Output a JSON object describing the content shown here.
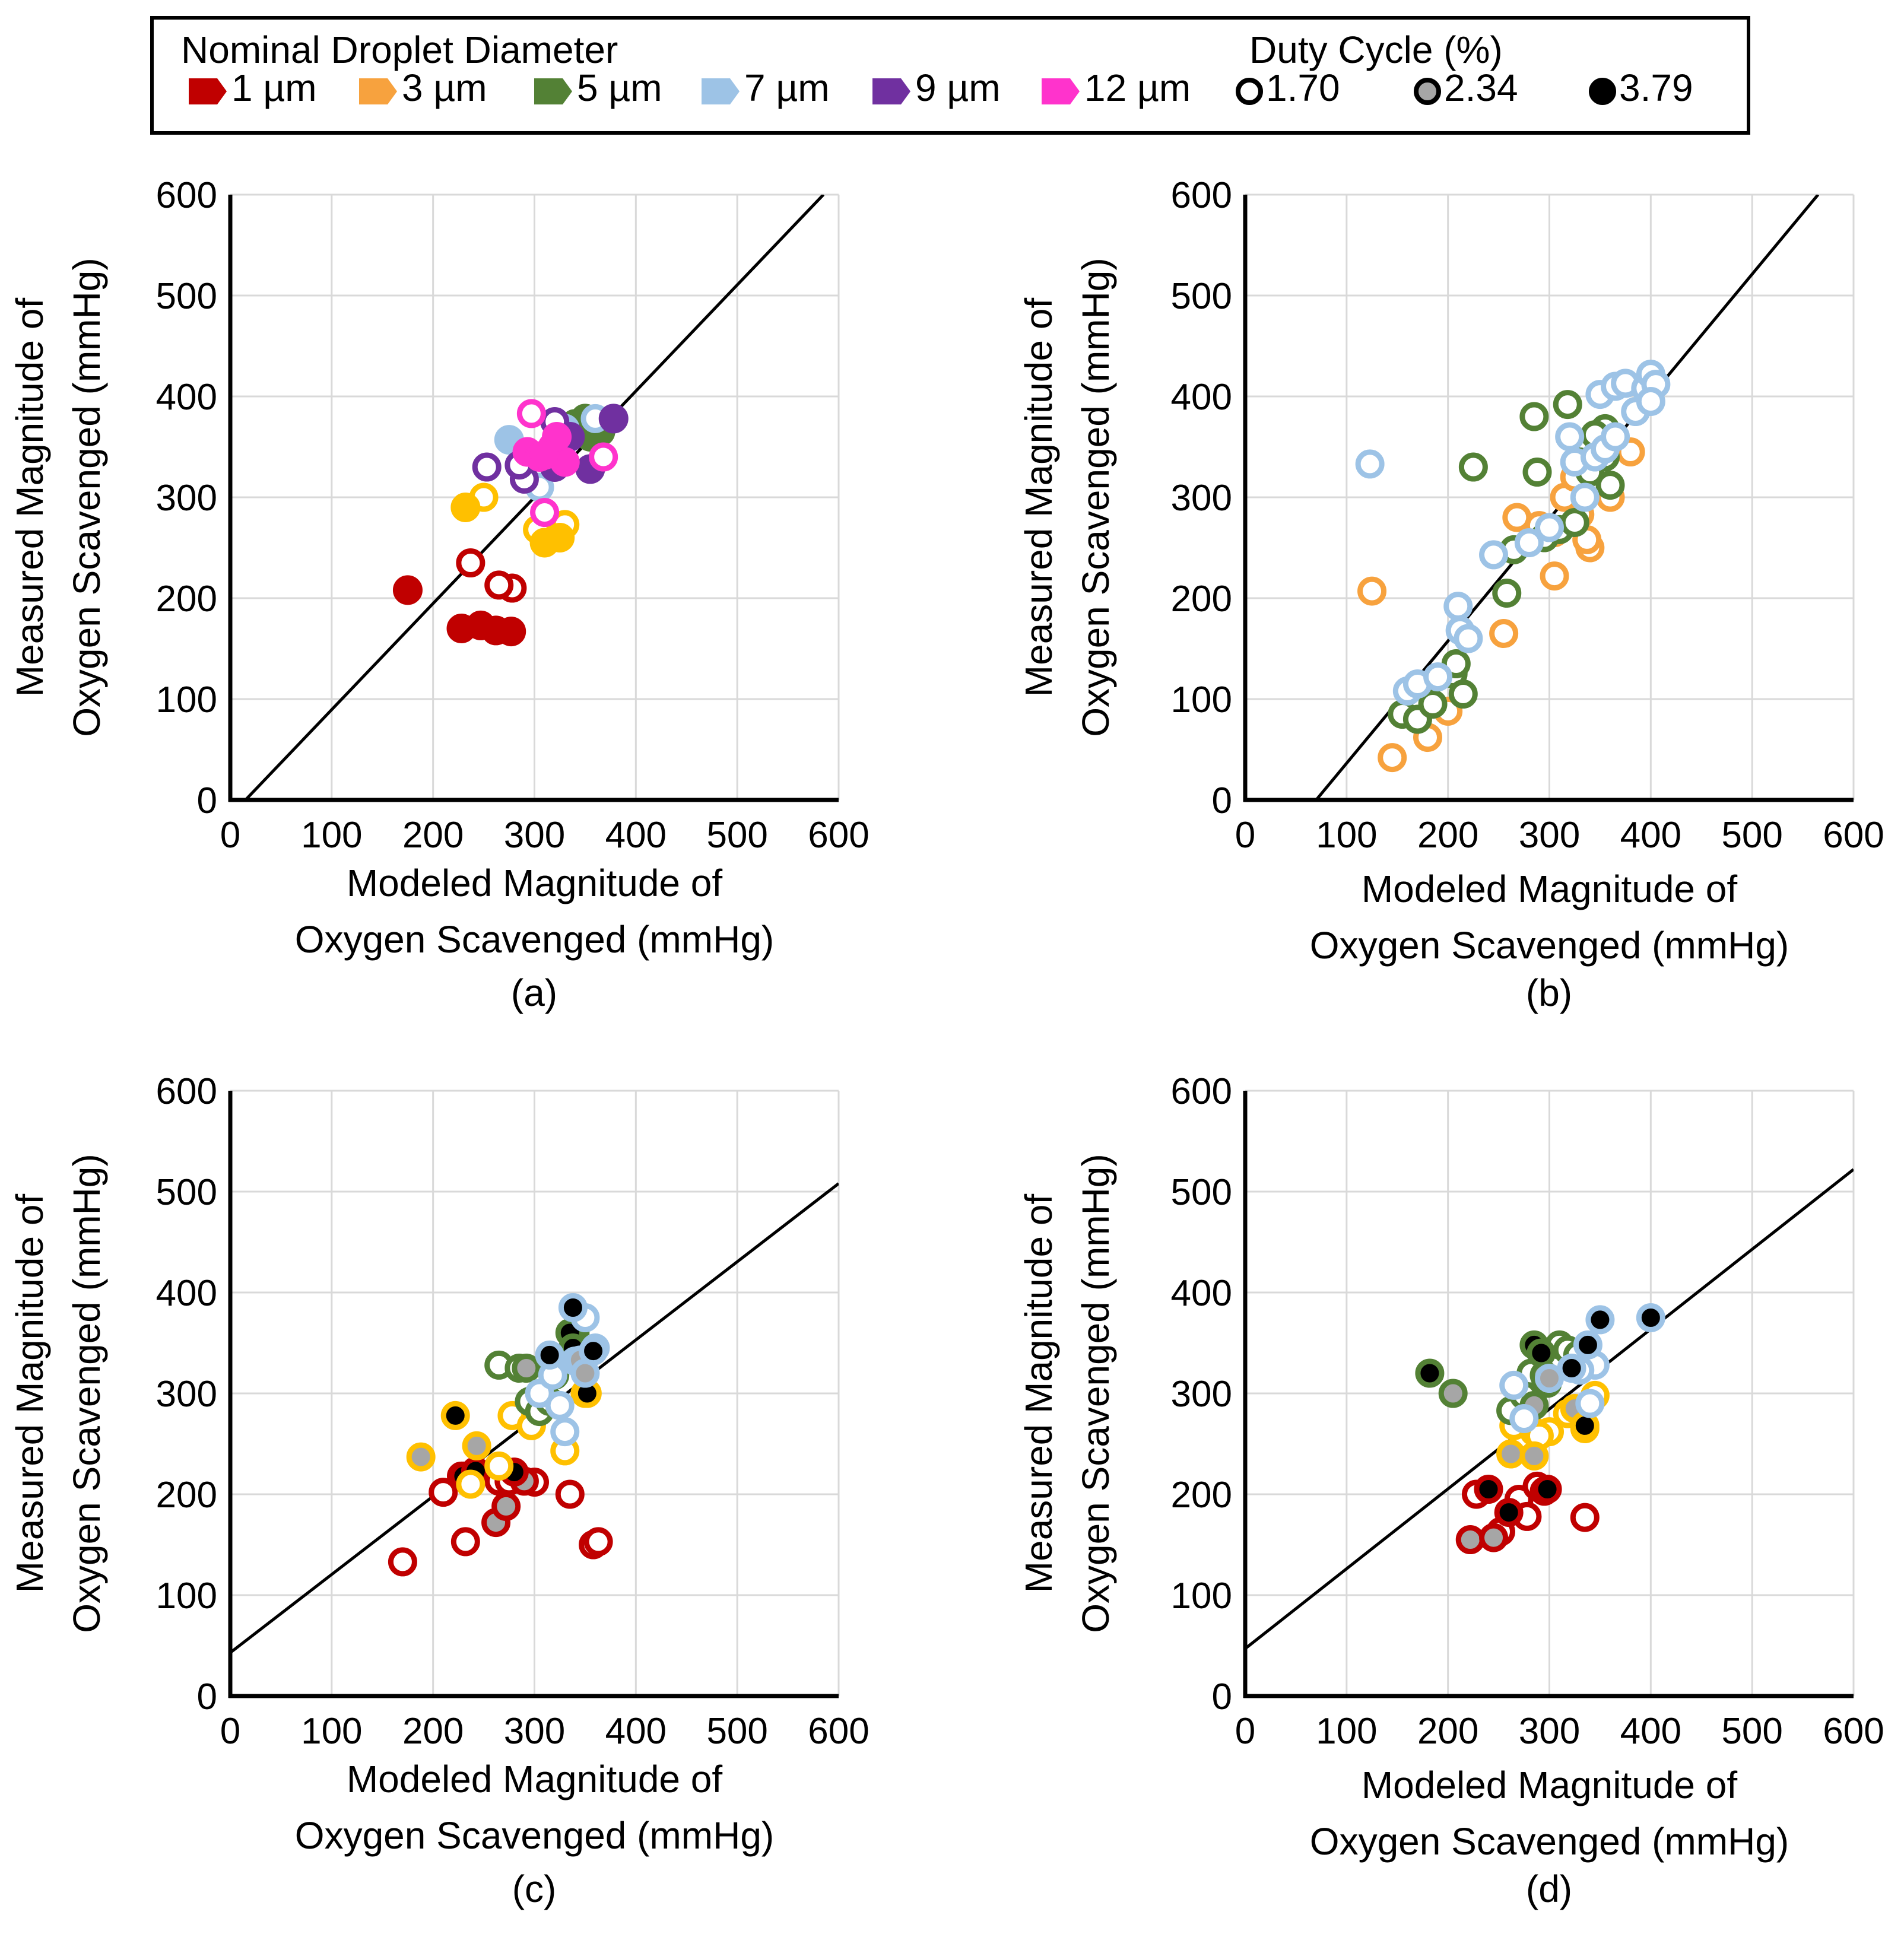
{
  "legend": {
    "diameter_title": "Nominal Droplet Diameter",
    "duty_title": "Duty Cycle (%)",
    "diameters": [
      {
        "label": "1 µm",
        "color": "#c00000"
      },
      {
        "label": "3 µm",
        "color": "#f7a23e"
      },
      {
        "label": "5 µm",
        "color": "#538135"
      },
      {
        "label": "7 µm",
        "color": "#9dc3e6"
      },
      {
        "label": "9 µm",
        "color": "#7030a0"
      },
      {
        "label": "12 µm",
        "color": "#ff33cc"
      }
    ],
    "duty_cycles": [
      {
        "label": "1.70",
        "fill": "#ffffff"
      },
      {
        "label": "2.34",
        "fill": "#a6a6a6"
      },
      {
        "label": "3.79",
        "fill": "#000000"
      }
    ]
  },
  "colors": {
    "d1": "#c00000",
    "d3": "#f7a23e",
    "d3b": "#ffc000",
    "d5": "#538135",
    "d7": "#9dc3e6",
    "d9": "#7030a0",
    "d12": "#ff33cc",
    "grid": "#d9d9d9",
    "axis": "#000000"
  },
  "chart_data": [
    {
      "panel": "(a)",
      "type": "scatter",
      "xlabel": [
        "Modeled Magnitude of",
        "Oxygen Scavenged (mmHg)"
      ],
      "ylabel": [
        "Measured Magnitude of",
        "Oxygen Scavenged (mmHg)"
      ],
      "xlim": [
        0,
        600
      ],
      "ylim": [
        0,
        600
      ],
      "xticks": [
        "0",
        "100",
        "200",
        "300",
        "400",
        "500",
        "600"
      ],
      "yticks": [
        "0",
        "100",
        "200",
        "300",
        "400",
        "500",
        "600"
      ],
      "fit_line": [
        [
          15,
          0
        ],
        [
          585,
          600
        ]
      ],
      "series": [
        {
          "name": "1 µm",
          "color": "d1",
          "open": [
            [
              237,
              235
            ],
            [
              278,
              210
            ],
            [
              265,
              213
            ]
          ],
          "filled": [
            [
              175,
              208
            ],
            [
              228,
              170
            ],
            [
              247,
              173
            ],
            [
              262,
              168
            ],
            [
              277,
              167
            ]
          ]
        },
        {
          "name": "3 µm",
          "color": "d3b",
          "open": [
            [
              250,
              300
            ],
            [
              303,
              268
            ],
            [
              330,
              273
            ]
          ],
          "filled": [
            [
              232,
              290
            ],
            [
              310,
              255
            ],
            [
              325,
              260
            ]
          ]
        },
        {
          "name": "5 µm",
          "color": "d5",
          "open": [
            [
              340,
              373
            ]
          ],
          "filled": [
            [
              350,
              378
            ],
            [
              365,
              365
            ],
            [
              355,
              360
            ]
          ]
        },
        {
          "name": "7 µm",
          "color": "d7",
          "open": [
            [
              305,
              310
            ],
            [
              360,
              378
            ]
          ],
          "filled": [
            [
              275,
              357
            ],
            [
              330,
              368
            ]
          ]
        },
        {
          "name": "9 µm",
          "color": "d9",
          "open": [
            [
              253,
              330
            ],
            [
              290,
              318
            ],
            [
              320,
              375
            ],
            [
              285,
              332
            ]
          ],
          "filled": [
            [
              378,
              378
            ],
            [
              355,
              328
            ],
            [
              320,
              330
            ],
            [
              335,
              360
            ]
          ]
        },
        {
          "name": "12 µm",
          "color": "d12",
          "open": [
            [
              297,
              383
            ],
            [
              310,
              285
            ],
            [
              368,
              340
            ]
          ],
          "filled": [
            [
              293,
              345
            ],
            [
              305,
              340
            ],
            [
              318,
              350
            ],
            [
              330,
              335
            ],
            [
              322,
              360
            ],
            [
              310,
              342
            ]
          ]
        }
      ]
    },
    {
      "panel": "(b)",
      "type": "scatter",
      "xlabel": [
        "Modeled Magnitude of",
        "Oxygen Scavenged (mmHg)"
      ],
      "ylabel": [
        "Measured Magnitude of",
        "Oxygen Scavenged (mmHg)"
      ],
      "xlim": [
        0,
        600
      ],
      "ylim": [
        0,
        600
      ],
      "xticks": [
        "0",
        "100",
        "200",
        "300",
        "400",
        "500",
        "600"
      ],
      "yticks": [
        "0",
        "100",
        "200",
        "300",
        "400",
        "500",
        "600"
      ],
      "fit_line": [
        [
          70,
          0
        ],
        [
          565,
          600
        ]
      ],
      "series": [
        {
          "name": "3 µm",
          "color": "d3",
          "open": [
            [
              125,
              207
            ],
            [
              145,
              42
            ],
            [
              180,
              62
            ],
            [
              200,
              88
            ],
            [
              255,
              165
            ],
            [
              268,
              280
            ],
            [
              290,
              272
            ],
            [
              305,
              222
            ],
            [
              305,
              265
            ],
            [
              330,
              283
            ],
            [
              340,
              250
            ],
            [
              350,
              308
            ],
            [
              360,
              300
            ],
            [
              380,
              345
            ],
            [
              315,
              300
            ],
            [
              325,
              320
            ],
            [
              337,
              258
            ]
          ],
          "filled": []
        },
        {
          "name": "5 µm",
          "color": "d5",
          "open": [
            [
              155,
              85
            ],
            [
              170,
              80
            ],
            [
              185,
              95
            ],
            [
              205,
              125
            ],
            [
              208,
              135
            ],
            [
              215,
              105
            ],
            [
              225,
              330
            ],
            [
              258,
              205
            ],
            [
              265,
              248
            ],
            [
              285,
              380
            ],
            [
              288,
              325
            ],
            [
              295,
              260
            ],
            [
              310,
              268
            ],
            [
              318,
              392
            ],
            [
              330,
              335
            ],
            [
              340,
              325
            ],
            [
              355,
              340
            ],
            [
              360,
              312
            ],
            [
              355,
              368
            ],
            [
              345,
              362
            ],
            [
              325,
              275
            ]
          ],
          "filled": []
        },
        {
          "name": "7 µm",
          "color": "d7",
          "open": [
            [
              123,
              333
            ],
            [
              160,
              108
            ],
            [
              170,
              115
            ],
            [
              190,
              122
            ],
            [
              210,
              192
            ],
            [
              212,
              168
            ],
            [
              220,
              160
            ],
            [
              245,
              243
            ],
            [
              280,
              255
            ],
            [
              300,
              270
            ],
            [
              320,
              360
            ],
            [
              325,
              335
            ],
            [
              335,
              300
            ],
            [
              345,
              340
            ],
            [
              355,
              348
            ],
            [
              350,
              402
            ],
            [
              365,
              410
            ],
            [
              375,
              413
            ],
            [
              385,
              385
            ],
            [
              395,
              408
            ],
            [
              400,
              422
            ],
            [
              405,
              412
            ],
            [
              400,
              395
            ],
            [
              365,
              360
            ]
          ],
          "filled": []
        }
      ]
    },
    {
      "panel": "(c)",
      "type": "scatter",
      "xlabel": [
        "Modeled Magnitude of",
        "Oxygen Scavenged (mmHg)"
      ],
      "ylabel": [
        "Measured Magnitude of",
        "Oxygen Scavenged (mmHg)"
      ],
      "xlim": [
        0,
        600
      ],
      "ylim": [
        0,
        600
      ],
      "xticks": [
        "0",
        "100",
        "200",
        "300",
        "400",
        "500",
        "600"
      ],
      "yticks": [
        "0",
        "100",
        "200",
        "300",
        "400",
        "500",
        "600"
      ],
      "fit_line": [
        [
          0,
          43
        ],
        [
          600,
          508
        ]
      ],
      "series": [
        {
          "name": "1 µm",
          "color": "d1",
          "p170": [
            [
              170,
              133
            ],
            [
              210,
              202
            ],
            [
              232,
              153
            ],
            [
              265,
              213
            ],
            [
              275,
              213
            ],
            [
              300,
              212
            ],
            [
              335,
              200
            ],
            [
              358,
              150
            ],
            [
              363,
              153
            ],
            [
              228,
              218
            ]
          ],
          "p234": [
            [
              262,
              172
            ],
            [
              272,
              188
            ],
            [
              290,
              213
            ]
          ],
          "p379": [
            [
              230,
              218
            ],
            [
              242,
              223
            ],
            [
              280,
              222
            ]
          ]
        },
        {
          "name": "3 µm",
          "color": "d3b",
          "p170": [
            [
              237,
              210
            ],
            [
              265,
              228
            ],
            [
              278,
              278
            ],
            [
              297,
              268
            ],
            [
              330,
              243
            ],
            [
              350,
              300
            ]
          ],
          "p234": [
            [
              188,
              237
            ],
            [
              243,
              248
            ]
          ],
          "p379": [
            [
              222,
              278
            ],
            [
              352,
              300
            ]
          ]
        },
        {
          "name": "5 µm",
          "color": "d5",
          "p170": [
            [
              265,
              328
            ],
            [
              285,
              325
            ],
            [
              295,
              292
            ],
            [
              305,
              282
            ],
            [
              315,
              292
            ],
            [
              340,
              355
            ],
            [
              320,
              318
            ],
            [
              348,
              335
            ]
          ],
          "p234": [
            [
              292,
              325
            ],
            [
              340,
              360
            ]
          ],
          "p379": [
            [
              335,
              360
            ],
            [
              338,
              345
            ]
          ]
        },
        {
          "name": "7 µm",
          "color": "d7",
          "p170": [
            [
              305,
              300
            ],
            [
              318,
              318
            ],
            [
              325,
              288
            ],
            [
              330,
              262
            ],
            [
              350,
              375
            ],
            [
              360,
              345
            ],
            [
              340,
              332
            ]
          ],
          "p234": [
            [
              345,
              333
            ],
            [
              350,
              320
            ]
          ],
          "p379": [
            [
              338,
              385
            ],
            [
              315,
              338
            ],
            [
              358,
              342
            ]
          ]
        }
      ]
    },
    {
      "panel": "(d)",
      "type": "scatter",
      "xlabel": [
        "Modeled Magnitude of",
        "Oxygen Scavenged (mmHg)"
      ],
      "ylabel": [
        "Measured Magnitude of",
        "Oxygen Scavenged (mmHg)"
      ],
      "xlim": [
        0,
        600
      ],
      "ylim": [
        0,
        600
      ],
      "xticks": [
        "0",
        "100",
        "200",
        "300",
        "400",
        "500",
        "600"
      ],
      "yticks": [
        "0",
        "100",
        "200",
        "300",
        "400",
        "500",
        "600"
      ],
      "fit_line": [
        [
          0,
          47
        ],
        [
          600,
          522
        ]
      ],
      "series": [
        {
          "name": "1 µm",
          "color": "d1",
          "p170": [
            [
              228,
              200
            ],
            [
              252,
              163
            ],
            [
              270,
              195
            ],
            [
              288,
              208
            ],
            [
              295,
              203
            ],
            [
              335,
              177
            ],
            [
              278,
              178
            ]
          ],
          "p234": [
            [
              222,
              155
            ],
            [
              245,
              157
            ]
          ],
          "p379": [
            [
              240,
              205
            ],
            [
              260,
              182
            ],
            [
              298,
              205
            ]
          ]
        },
        {
          "name": "3 µm",
          "color": "d3b",
          "p170": [
            [
              265,
              268
            ],
            [
              285,
              262
            ],
            [
              300,
              262
            ],
            [
              318,
              280
            ],
            [
              335,
              265
            ],
            [
              345,
              298
            ],
            [
              290,
              258
            ]
          ],
          "p234": [
            [
              262,
              240
            ],
            [
              285,
              238
            ],
            [
              325,
              285
            ]
          ],
          "p379": [
            [
              335,
              268
            ]
          ]
        },
        {
          "name": "5 µm",
          "color": "d5",
          "p170": [
            [
              262,
              283
            ],
            [
              275,
              298
            ],
            [
              298,
              310
            ],
            [
              310,
              348
            ],
            [
              318,
              343
            ],
            [
              328,
              338
            ],
            [
              282,
              320
            ]
          ],
          "p234": [
            [
              205,
              300
            ],
            [
              285,
              288
            ],
            [
              295,
              318
            ]
          ],
          "p379": [
            [
              182,
              320
            ],
            [
              285,
              348
            ],
            [
              292,
              340
            ]
          ]
        },
        {
          "name": "7 µm",
          "color": "d7",
          "p170": [
            [
              265,
              308
            ],
            [
              275,
              275
            ],
            [
              345,
              328
            ],
            [
              340,
              290
            ],
            [
              330,
              323
            ]
          ],
          "p234": [
            [
              300,
              315
            ]
          ],
          "p379": [
            [
              322,
              325
            ],
            [
              338,
              348
            ],
            [
              350,
              373
            ],
            [
              400,
              375
            ]
          ]
        }
      ]
    }
  ]
}
